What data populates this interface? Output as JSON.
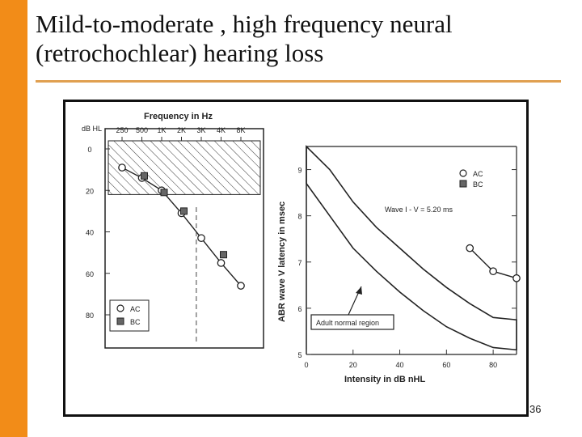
{
  "slide": {
    "title_line1": "Mild-to-moderate , high frequency neural",
    "title_line2": "(retrochochlear) hearing loss",
    "page_number": "36",
    "accent_color": "#f28c18"
  },
  "chart_data": [
    {
      "type": "line",
      "title": "Frequency in Hz",
      "ylabel": "dB HL",
      "categories": [
        "250",
        "500",
        "1K",
        "2K",
        "3K",
        "4K",
        "8K"
      ],
      "ytick_labels": [
        "0",
        "20",
        "40",
        "60",
        "80"
      ],
      "ylim": [
        0,
        80
      ],
      "y_inverted": true,
      "shaded_region": {
        "from": 0,
        "to": 22,
        "style": "hatched"
      },
      "series": [
        {
          "name": "AC",
          "marker": "circle",
          "points": [
            [
              0,
              9
            ],
            [
              1,
              14
            ],
            [
              2,
              20
            ],
            [
              3,
              31
            ],
            [
              4,
              43
            ],
            [
              5,
              55
            ],
            [
              6,
              66
            ]
          ]
        },
        {
          "name": "BC",
          "marker": "square",
          "points": [
            [
              1,
              13
            ],
            [
              2,
              21
            ],
            [
              3,
              30
            ],
            [
              5,
              51
            ]
          ]
        }
      ],
      "legend": {
        "position": "bottom-left",
        "entries": [
          "AC",
          "BC"
        ]
      }
    },
    {
      "type": "line",
      "xlabel": "Intensity in dB nHL",
      "ylabel": "ABR wave V latency in msec",
      "xlim": [
        0,
        90
      ],
      "ylim": [
        5,
        9.5
      ],
      "xticks": [
        0,
        20,
        40,
        60,
        80
      ],
      "yticks": [
        5,
        6,
        7,
        8,
        9
      ],
      "normal_region": {
        "label": "Adult normal region",
        "upper": [
          [
            0,
            9.5
          ],
          [
            10,
            9.0
          ],
          [
            20,
            8.3
          ],
          [
            30,
            7.75
          ],
          [
            40,
            7.3
          ],
          [
            50,
            6.85
          ],
          [
            60,
            6.45
          ],
          [
            70,
            6.1
          ],
          [
            80,
            5.8
          ],
          [
            90,
            5.75
          ]
        ],
        "lower": [
          [
            0,
            8.7
          ],
          [
            10,
            8.0
          ],
          [
            20,
            7.3
          ],
          [
            30,
            6.8
          ],
          [
            40,
            6.35
          ],
          [
            50,
            5.95
          ],
          [
            60,
            5.6
          ],
          [
            70,
            5.35
          ],
          [
            80,
            5.15
          ],
          [
            90,
            5.1
          ]
        ]
      },
      "series": [
        {
          "name": "AC",
          "marker": "circle",
          "points": [
            [
              70,
              7.3
            ],
            [
              80,
              6.8
            ],
            [
              90,
              6.65
            ]
          ]
        }
      ],
      "annotation": "Wave I - V = 5.20 ms",
      "legend": {
        "position": "top-right",
        "entries": [
          "AC",
          "BC"
        ]
      }
    }
  ]
}
